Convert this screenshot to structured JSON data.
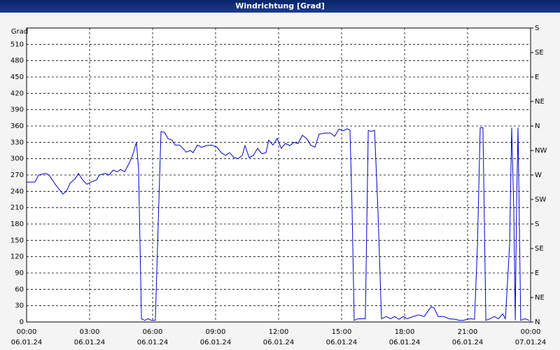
{
  "chart_data": {
    "type": "line",
    "title": "Windrichtung [Grad]",
    "ylabel": "Grad",
    "ylim": [
      0,
      540
    ],
    "yticks": [
      0,
      30,
      60,
      90,
      120,
      150,
      180,
      210,
      240,
      270,
      300,
      330,
      360,
      390,
      420,
      450,
      480,
      510
    ],
    "y2lim": [
      0,
      540
    ],
    "y2ticks": [
      {
        "value": 0,
        "label": "N"
      },
      {
        "value": 45,
        "label": "NE"
      },
      {
        "value": 90,
        "label": "E"
      },
      {
        "value": 135,
        "label": "SE"
      },
      {
        "value": 180,
        "label": "S"
      },
      {
        "value": 225,
        "label": "SW"
      },
      {
        "value": 270,
        "label": "W"
      },
      {
        "value": 315,
        "label": "NW"
      },
      {
        "value": 360,
        "label": "N"
      },
      {
        "value": 405,
        "label": "NE"
      },
      {
        "value": 450,
        "label": "E"
      },
      {
        "value": 495,
        "label": "SE"
      },
      {
        "value": 540,
        "label": "S"
      }
    ],
    "xlim": [
      0,
      24
    ],
    "xticks": [
      {
        "value": 0,
        "label": "00:00",
        "date": "06.01.24"
      },
      {
        "value": 3,
        "label": "03:00",
        "date": "06.01.24"
      },
      {
        "value": 6,
        "label": "06:00",
        "date": "06.01.24"
      },
      {
        "value": 9,
        "label": "09:00",
        "date": "06.01.24"
      },
      {
        "value": 12,
        "label": "12:00",
        "date": "06.01.24"
      },
      {
        "value": 15,
        "label": "15:00",
        "date": "06.01.24"
      },
      {
        "value": 18,
        "label": "18:00",
        "date": "06.01.24"
      },
      {
        "value": 21,
        "label": "21:00",
        "date": "06.01.24"
      },
      {
        "value": 24,
        "label": "00:00",
        "date": "07.01.24"
      }
    ],
    "grid": true,
    "color": "#0000cc",
    "x": [
      0,
      0.4,
      0.57,
      0.9,
      1.07,
      1.4,
      1.73,
      1.9,
      2.07,
      2.33,
      2.47,
      2.67,
      2.87,
      3.07,
      3.33,
      3.47,
      3.73,
      3.93,
      4.13,
      4.33,
      4.47,
      4.67,
      4.9,
      5.07,
      5.23,
      5.33,
      5.47,
      5.63,
      5.8,
      5.93,
      6.13,
      6.4,
      6.57,
      6.73,
      6.93,
      7.07,
      7.27,
      7.4,
      7.6,
      7.8,
      7.93,
      8.13,
      8.33,
      8.57,
      8.8,
      9.07,
      9.27,
      9.47,
      9.67,
      9.87,
      10.07,
      10.27,
      10.4,
      10.6,
      10.8,
      11.0,
      11.2,
      11.4,
      11.53,
      11.73,
      11.93,
      12.13,
      12.33,
      12.53,
      12.73,
      12.93,
      13.13,
      13.33,
      13.53,
      13.73,
      13.93,
      14.2,
      14.47,
      14.67,
      14.87,
      15.07,
      15.27,
      15.4,
      15.5,
      15.6,
      15.8,
      16.0,
      16.13,
      16.27,
      16.4,
      16.57,
      16.73,
      16.9,
      17.13,
      17.33,
      17.53,
      17.73,
      17.93,
      18.13,
      18.4,
      18.67,
      18.93,
      19.13,
      19.27,
      19.4,
      19.6,
      19.87,
      20.13,
      20.4,
      20.6,
      20.8,
      21.0,
      21.13,
      21.33,
      21.47,
      21.6,
      21.73,
      21.87,
      22.07,
      22.27,
      22.47,
      22.67,
      22.8,
      23.0,
      23.1,
      23.2,
      23.27,
      23.33,
      23.4,
      23.53,
      23.73,
      23.93
    ],
    "values": [
      257,
      257,
      270,
      273,
      270,
      251,
      235,
      240,
      255,
      264,
      273,
      261,
      253,
      257,
      261,
      270,
      273,
      270,
      279,
      276,
      280,
      276,
      293,
      309,
      330,
      283,
      6,
      3,
      6,
      3,
      3,
      350,
      348,
      337,
      334,
      325,
      325,
      321,
      312,
      315,
      311,
      325,
      321,
      324,
      325,
      321,
      311,
      306,
      311,
      302,
      300,
      306,
      324,
      302,
      306,
      319,
      309,
      311,
      334,
      325,
      337,
      319,
      328,
      324,
      330,
      328,
      343,
      337,
      325,
      321,
      345,
      347,
      347,
      341,
      354,
      351,
      355,
      352,
      206,
      3,
      6,
      6,
      6,
      352,
      350,
      352,
      206,
      6,
      10,
      6,
      10,
      5,
      10,
      6,
      10,
      13,
      10,
      21,
      28,
      26,
      10,
      10,
      6,
      5,
      3,
      3,
      5,
      6,
      5,
      141,
      357,
      357,
      3,
      6,
      10,
      6,
      15,
      6,
      141,
      357,
      206,
      3,
      206,
      357,
      3,
      6,
      3
    ]
  }
}
